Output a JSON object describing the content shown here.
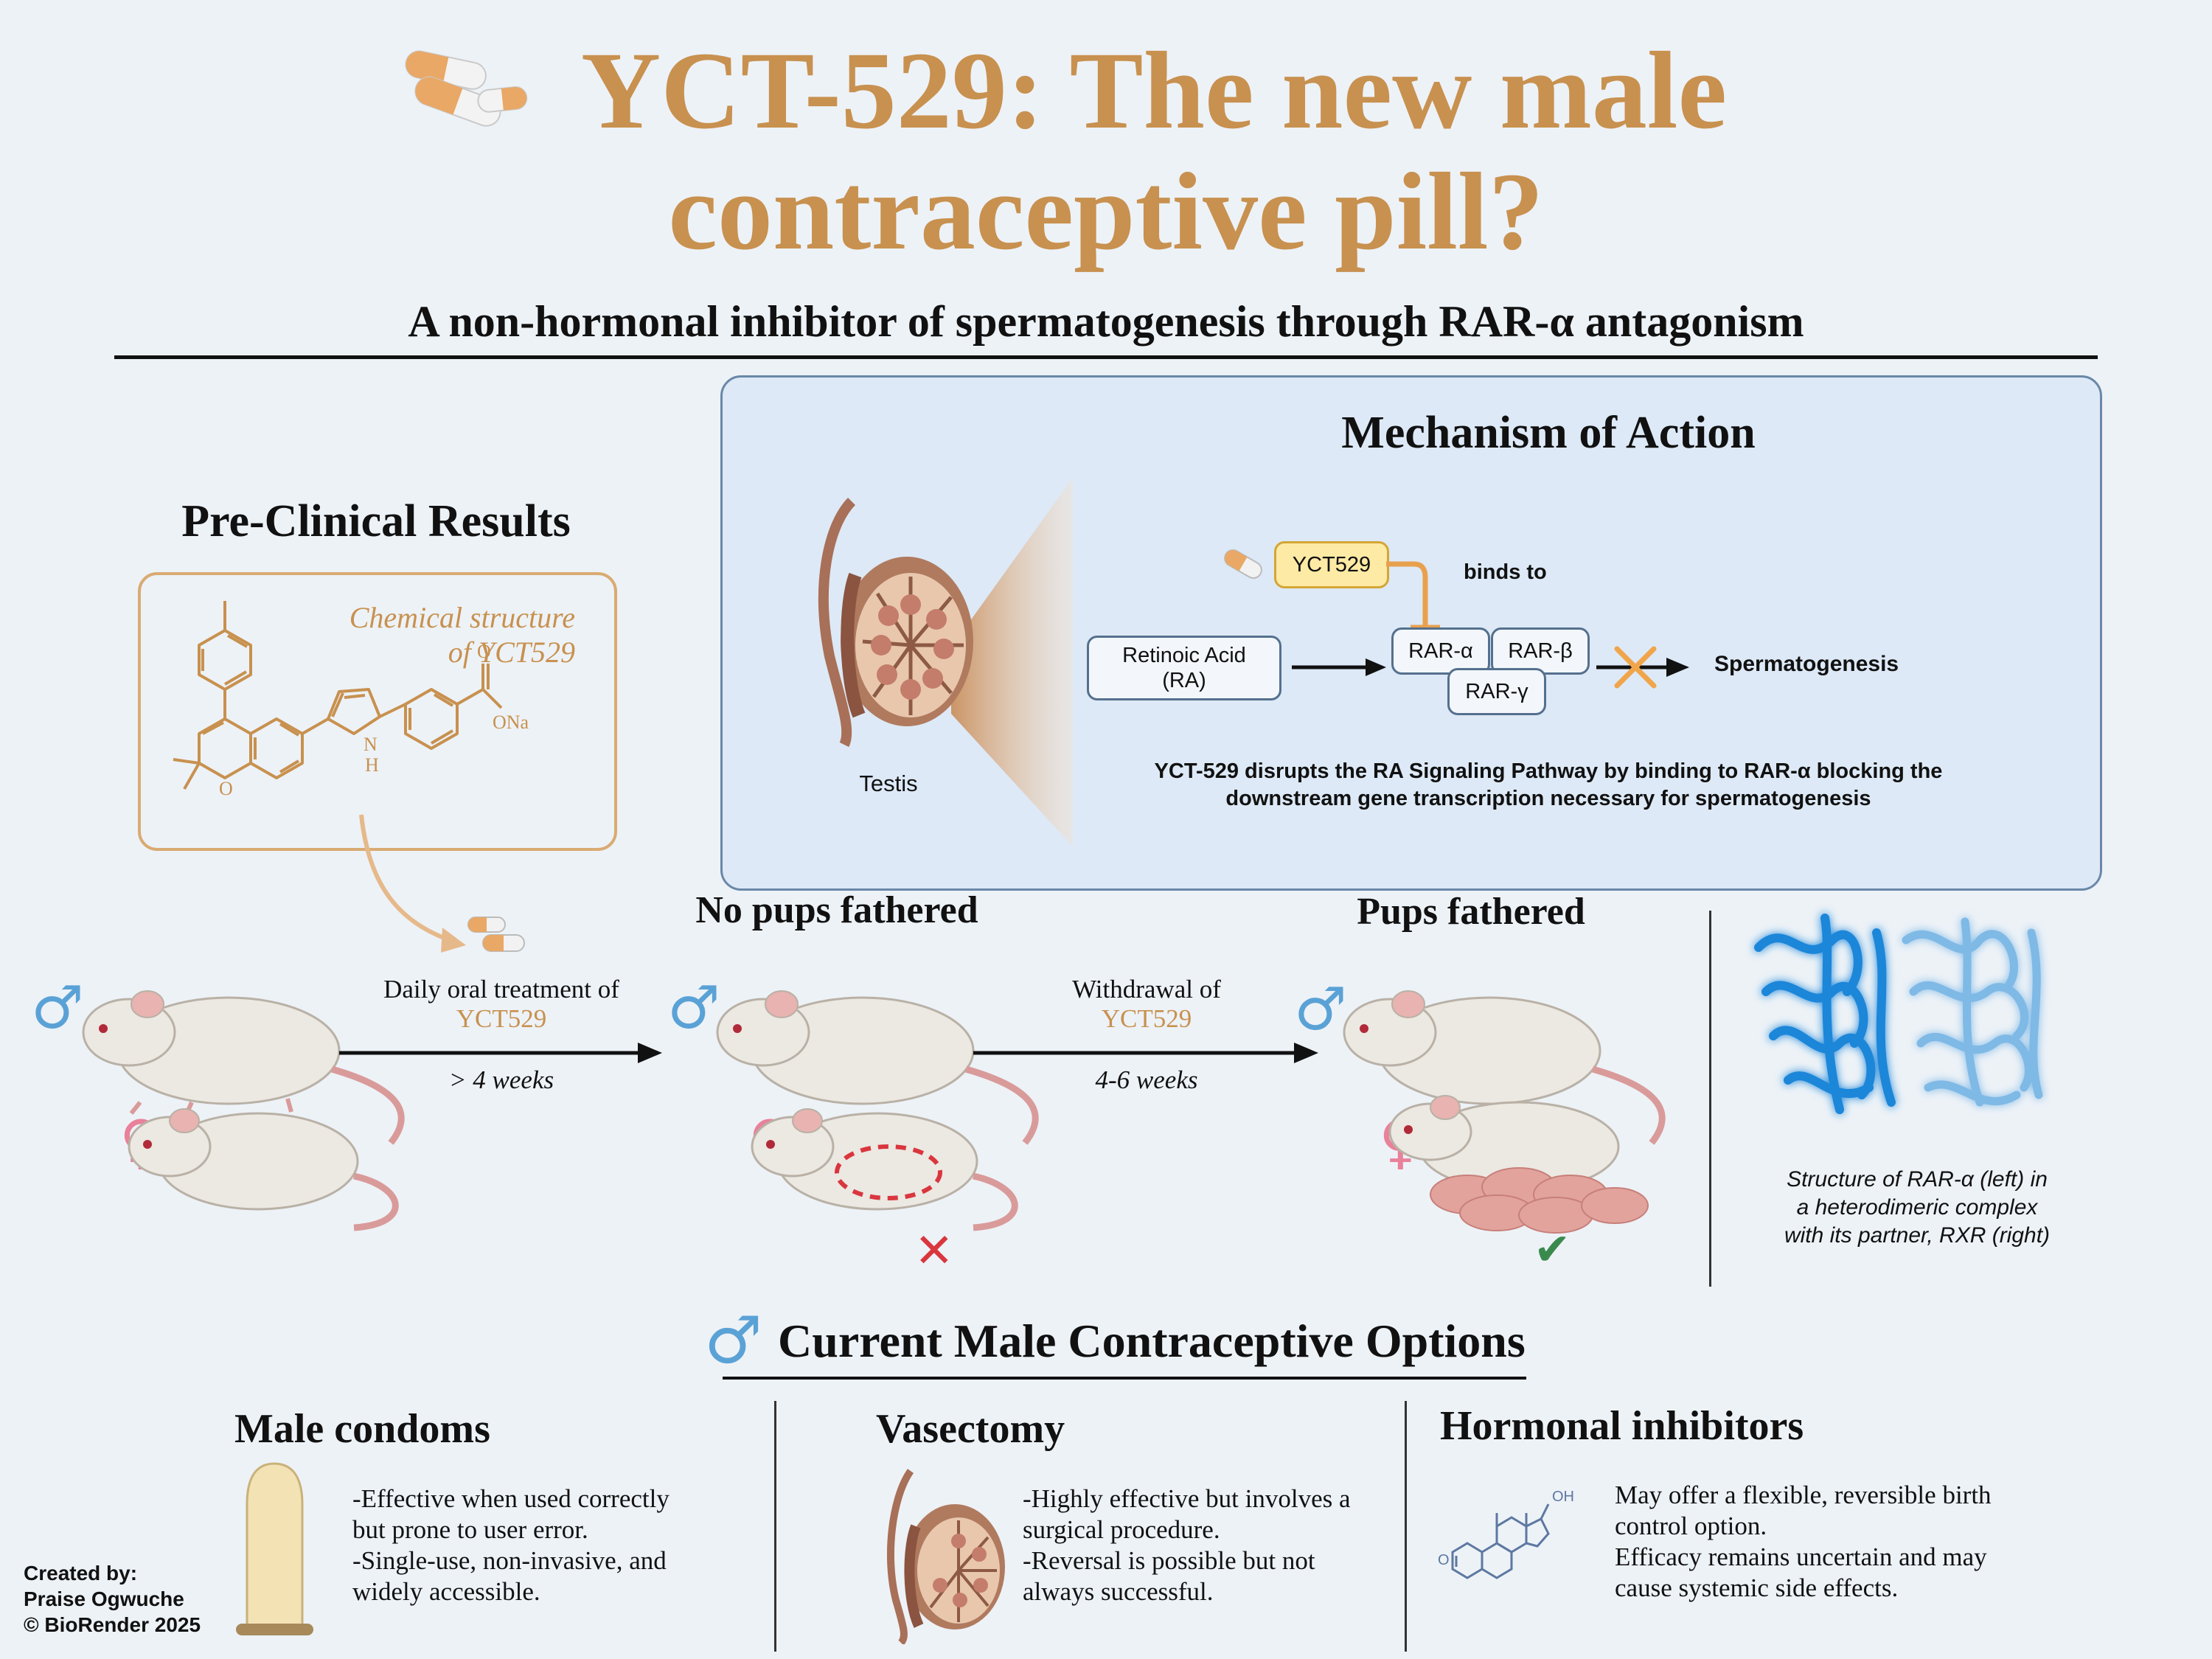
{
  "header": {
    "title_line1": "YCT-529: The new male",
    "title_line2": "contraceptive pill?",
    "subtitle": "A non-hormonal inhibitor of spermatogenesis through RAR-α antagonism"
  },
  "mechanism": {
    "heading": "Mechanism of Action",
    "testis_label": "Testis",
    "drug_label": "YCT529",
    "binds_to": "binds to",
    "retinoic_acid": "Retinoic Acid\n(RA)",
    "receptors": [
      "RAR-α",
      "RAR-β",
      "RAR-γ"
    ],
    "outcome": "Spermatogenesis",
    "description_line1": "YCT-529 disrupts the RA Signaling Pathway by binding to RAR-α blocking the",
    "description_line2": "downstream gene transcription necessary for spermatogenesis"
  },
  "preclinical": {
    "heading": "Pre-Clinical Results",
    "chem_caption_line1": "Chemical structure",
    "chem_caption_line2": "of YCT529",
    "atom_labels": [
      "N",
      "H",
      "O",
      "O",
      "ONa"
    ],
    "male_symbol": "♂",
    "female_symbol": "♀",
    "step1_text": "Daily oral treatment of",
    "step1_drug": "YCT529",
    "step1_duration": "> 4 weeks",
    "result1": "No pups fathered",
    "step2_text": "Withdrawal of",
    "step2_drug": "YCT529",
    "step2_duration": "4-6 weeks",
    "result2": "Pups fathered",
    "cross_mark": "✕",
    "check_mark": "✔",
    "structure_caption_line1": "Structure of RAR-α (left) in",
    "structure_caption_line2": "a heterodimeric complex",
    "structure_caption_line3": "with its partner, RXR (right)"
  },
  "options": {
    "heading": "Current Male Contraceptive Options",
    "items": [
      {
        "title": "Male condoms",
        "lines": [
          "-Effective when used correctly",
          "but prone to user error.",
          "-Single-use, non-invasive, and",
          "widely accessible."
        ]
      },
      {
        "title": "Vasectomy",
        "lines": [
          "-Highly effective but involves a",
          "surgical procedure.",
          "-Reversal is possible but not",
          "always successful."
        ]
      },
      {
        "title": "Hormonal inhibitors",
        "lines": [
          "May offer a flexible, reversible birth",
          "control option.",
          "Efficacy remains uncertain and may",
          "cause systemic side effects."
        ]
      }
    ],
    "steroid_labels": [
      "OH",
      "O"
    ]
  },
  "credits": {
    "line1": "Created by:",
    "line2": "Praise Ogwuche",
    "line3": "© BioRender 2025"
  },
  "colors": {
    "title_orange": "#c8914f",
    "male_blue": "#5aa2d6",
    "female_pink": "#e9819a",
    "cross_red": "#d9363e",
    "check_green": "#3a8a4e",
    "protein_blue": "#2d8fd8"
  }
}
